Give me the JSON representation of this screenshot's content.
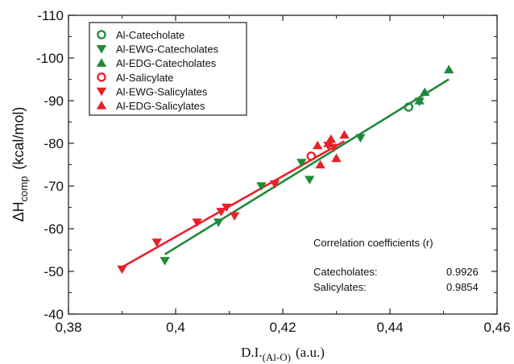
{
  "chart_data": {
    "type": "scatter",
    "title": "",
    "xlabel": {
      "main": "D.I.",
      "sub": "(Al-O)",
      "unit": "(a.u.)"
    },
    "ylabel": {
      "main": "ΔH",
      "sub": "comp",
      "unit": "(kcal/mol)"
    },
    "xlim": [
      0.38,
      0.46
    ],
    "ylim": [
      -40,
      -110
    ],
    "y_inverted": true,
    "x_ticks": [
      0.38,
      0.4,
      0.42,
      0.44,
      0.46
    ],
    "x_tick_labels": [
      "0,38",
      "0,4",
      "0,42",
      "0,44",
      "0,46"
    ],
    "y_ticks": [
      -40,
      -50,
      -60,
      -70,
      -80,
      -90,
      -100,
      -110
    ],
    "y_tick_labels": [
      "-40",
      "-50",
      "-60",
      "-70",
      "-80",
      "-90",
      "-100",
      "-110"
    ],
    "grid": false,
    "legend_position": "top-left",
    "colors": {
      "green": "#1e8a3a",
      "red": "#e8202a"
    },
    "series": [
      {
        "name": "Al-Catecholate",
        "marker": "circle-open",
        "color": "#1e8a3a",
        "points": [
          [
            0.4435,
            -88.5
          ]
        ]
      },
      {
        "name": "Al-EWG-Catecholates",
        "marker": "triangle-down",
        "color": "#1e8a3a",
        "points": [
          [
            0.398,
            -52.5
          ],
          [
            0.408,
            -61.5
          ],
          [
            0.416,
            -70
          ],
          [
            0.4235,
            -75.5
          ],
          [
            0.425,
            -71.5
          ],
          [
            0.4345,
            -81.3
          ],
          [
            0.4455,
            -89.8
          ]
        ]
      },
      {
        "name": "Al-EDG-Catecholates",
        "marker": "triangle-up",
        "color": "#1e8a3a",
        "points": [
          [
            0.4455,
            -90
          ],
          [
            0.4465,
            -92
          ],
          [
            0.451,
            -97.3
          ]
        ]
      },
      {
        "name": "Al-Salicylate",
        "marker": "circle-open",
        "color": "#e8202a",
        "points": [
          [
            0.4253,
            -77
          ]
        ]
      },
      {
        "name": "Al-EWG-Salicylates",
        "marker": "triangle-down",
        "color": "#e8202a",
        "points": [
          [
            0.39,
            -50.5
          ],
          [
            0.3965,
            -56.8
          ],
          [
            0.404,
            -61.5
          ],
          [
            0.4085,
            -64
          ],
          [
            0.4095,
            -65
          ],
          [
            0.411,
            -63
          ],
          [
            0.4185,
            -70.5
          ],
          [
            0.4285,
            -79.5
          ],
          [
            0.4295,
            -79
          ]
        ]
      },
      {
        "name": "Al-EDG-Salicylates",
        "marker": "triangle-up",
        "color": "#e8202a",
        "points": [
          [
            0.4265,
            -79.5
          ],
          [
            0.427,
            -75
          ],
          [
            0.4285,
            -80
          ],
          [
            0.429,
            -81
          ],
          [
            0.43,
            -76.5
          ],
          [
            0.4315,
            -82
          ]
        ]
      }
    ],
    "fit_lines": [
      {
        "name": "Catecholates fit",
        "color": "#1e8a3a",
        "x": [
          0.398,
          0.451
        ],
        "y": [
          -54,
          -95
        ]
      },
      {
        "name": "Salicylates fit",
        "color": "#e8202a",
        "x": [
          0.39,
          0.4315
        ],
        "y": [
          -51,
          -80.5
        ]
      }
    ],
    "annotation": {
      "title": "Correlation coefficients (r)",
      "rows": [
        {
          "label": "Catecholates:",
          "value": "0.9926"
        },
        {
          "label": "Salicylates:",
          "value": "0.9854"
        }
      ]
    }
  }
}
